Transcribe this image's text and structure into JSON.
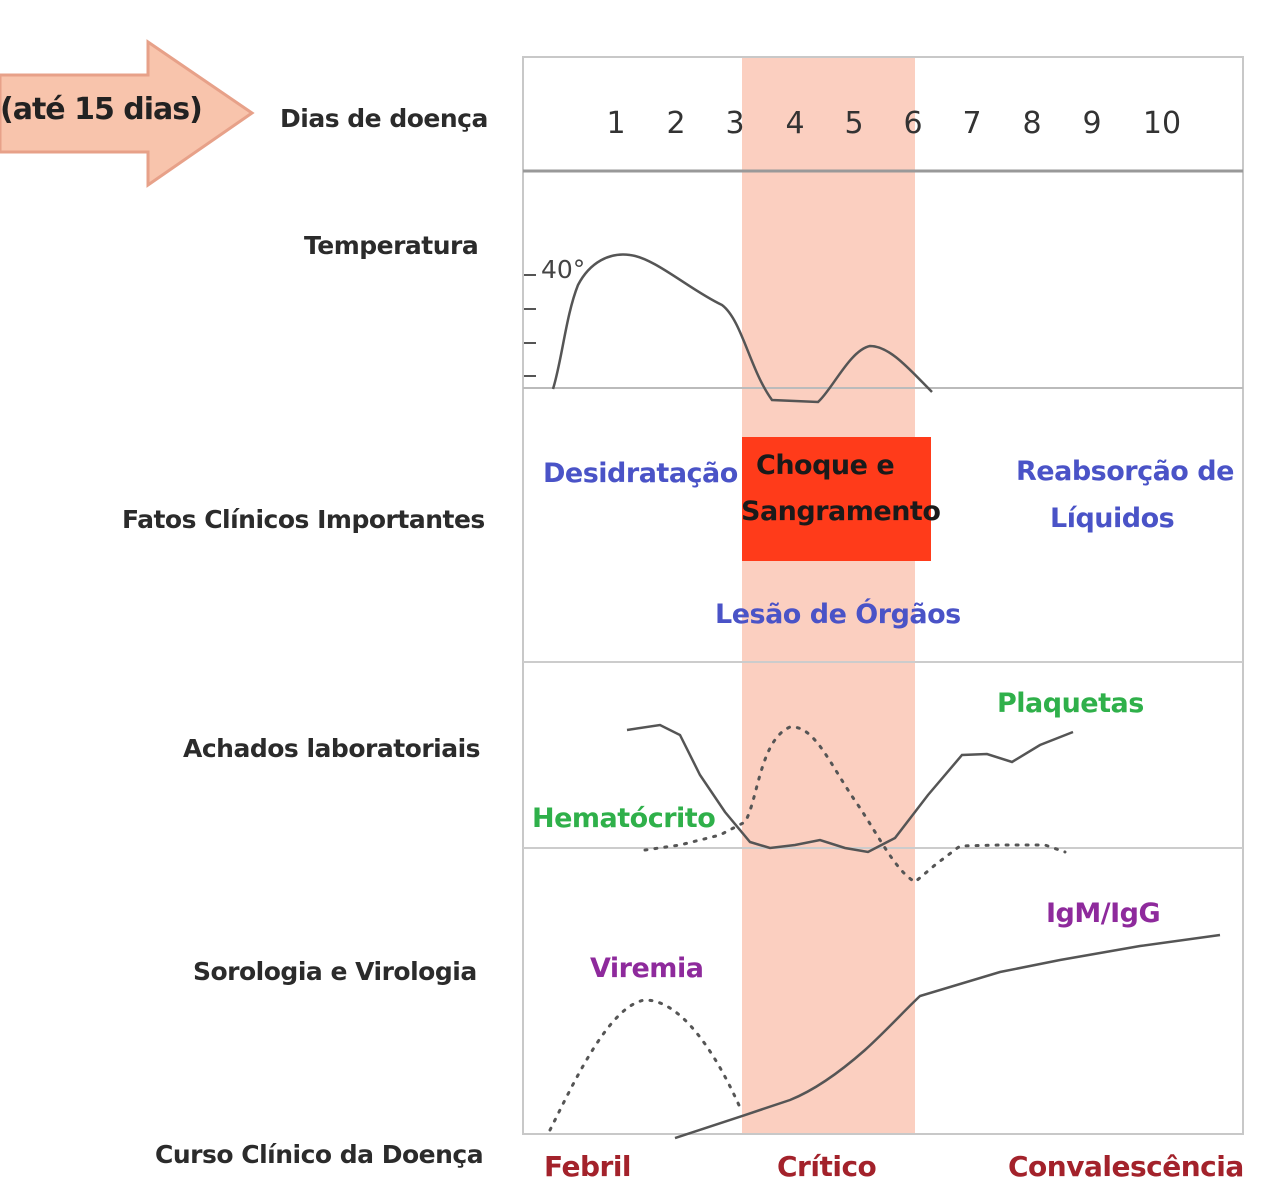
{
  "arrow": {
    "label": "(até 15 dias)"
  },
  "rows": {
    "days": "Dias de doença",
    "temperature": "Temperatura",
    "clinical_facts": "Fatos Clínicos Importantes",
    "lab_findings": "Achados laboratoriais",
    "serology": "Sorologia e Virologia",
    "clinical_course": "Curso Clínico da Doença"
  },
  "days": [
    "1",
    "2",
    "3",
    "4",
    "5",
    "6",
    "7",
    "8",
    "9",
    "10"
  ],
  "temperature": {
    "marker": "40°"
  },
  "clinical_facts": {
    "dehydration": "Desidratação",
    "shock_line1": "Choque e",
    "shock_line2": "Sangramento",
    "reabsorption_line1": "Reabsorção de",
    "reabsorption_line2": "Líquidos",
    "organ_damage": "Lesão de Órgãos"
  },
  "lab_findings": {
    "platelets": "Plaquetas",
    "hematocrit": "Hematócrito"
  },
  "serology": {
    "antibodies": "IgM/IgG",
    "viremia": "Viremia"
  },
  "phases": {
    "febrile": "Febril",
    "critical": "Crítico",
    "convalescence": "Convalescência"
  },
  "colors": {
    "critical_band": "#fbcfc0",
    "critical_box": "#ff3b1a",
    "fact_text": "#4a53c7",
    "lab_text": "#2fb04a",
    "serology_text": "#8e2a9c",
    "phase_text": "#a3222b",
    "arrow_fill": "#f8c4ac"
  }
}
